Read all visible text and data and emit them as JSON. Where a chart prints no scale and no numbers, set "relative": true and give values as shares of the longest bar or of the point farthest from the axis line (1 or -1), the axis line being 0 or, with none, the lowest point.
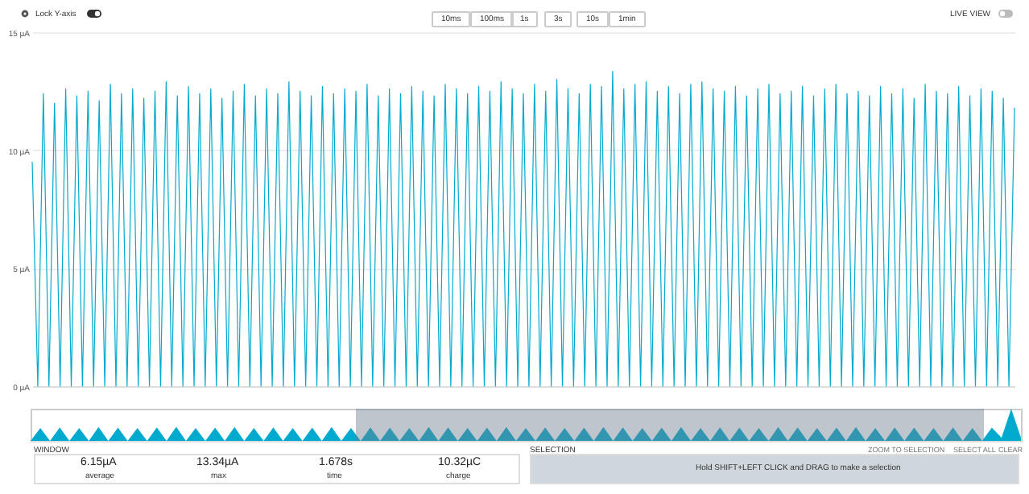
{
  "chart_data": [
    {
      "type": "line",
      "categories": [
        null,
        null,
        null,
        null,
        null,
        null,
        null,
        null,
        null,
        null,
        null,
        null,
        null,
        null,
        null,
        null,
        null,
        null,
        null,
        null,
        null,
        null,
        null,
        null,
        null,
        null,
        null,
        null,
        null,
        null,
        null,
        null,
        null,
        null,
        null,
        null,
        null,
        null,
        null,
        null,
        null,
        null,
        null,
        null,
        null,
        null,
        null,
        null,
        null,
        null,
        null,
        null,
        null,
        null,
        null,
        null,
        null,
        null,
        null,
        null,
        null,
        null,
        null,
        null,
        null,
        null,
        null,
        null,
        null,
        null,
        null,
        null,
        null,
        null,
        null,
        null,
        null,
        null,
        null,
        null,
        null,
        null,
        null,
        null,
        null,
        null,
        null,
        null,
        null,
        null,
        null,
        null,
        null,
        null,
        null,
        null,
        null,
        null,
        null,
        null,
        null,
        null,
        null,
        null,
        null,
        null,
        null,
        null,
        null,
        null,
        null,
        null,
        null,
        null,
        null,
        null,
        null,
        null,
        null,
        null,
        null,
        null,
        null,
        null,
        null,
        null,
        null,
        null,
        null,
        null,
        null,
        null,
        null,
        null,
        null,
        null,
        null,
        null,
        null,
        null,
        null,
        null,
        null,
        null,
        null,
        null,
        null,
        null,
        null,
        null,
        null,
        null,
        null,
        null,
        null,
        null,
        null,
        null,
        null,
        null,
        null,
        null,
        null,
        null,
        null,
        null,
        null,
        null,
        null,
        null,
        null,
        null,
        null,
        null,
        null,
        null,
        null
      ],
      "values": [
        9.5,
        0,
        12.4,
        0,
        12.0,
        0,
        12.6,
        0,
        12.3,
        0,
        12.5,
        0,
        12.1,
        0,
        12.8,
        0,
        12.4,
        0,
        12.6,
        0,
        12.2,
        0,
        12.5,
        0,
        12.9,
        0,
        12.3,
        0,
        12.7,
        0,
        12.4,
        0,
        12.6,
        0,
        12.2,
        0,
        12.5,
        0,
        12.8,
        0,
        12.3,
        0,
        12.6,
        0,
        12.4,
        0,
        12.9,
        0,
        12.5,
        0,
        12.3,
        0,
        12.7,
        0,
        12.4,
        0,
        12.6,
        0,
        12.5,
        0,
        12.8,
        0,
        12.3,
        0,
        12.6,
        0,
        12.4,
        0,
        12.7,
        0,
        12.5,
        0,
        12.3,
        0,
        12.8,
        0,
        12.6,
        0,
        12.4,
        0,
        12.7,
        0,
        12.5,
        0,
        12.9,
        0,
        12.6,
        0,
        12.4,
        0,
        12.8,
        0,
        12.5,
        0,
        13.0,
        0,
        12.6,
        0,
        12.4,
        0,
        12.8,
        0,
        12.7,
        0,
        13.34,
        0,
        12.6,
        0,
        12.8,
        0,
        12.9,
        0,
        12.5,
        0,
        12.7,
        0,
        12.4,
        0,
        12.8,
        0,
        12.9,
        0,
        12.6,
        0,
        12.5,
        0,
        12.7,
        0,
        12.3,
        0,
        12.6,
        0,
        12.8,
        0,
        12.4,
        0,
        12.5,
        0,
        12.7,
        0,
        12.3,
        0,
        12.6,
        0,
        12.8,
        0,
        12.4,
        0,
        12.5,
        0,
        12.3,
        0,
        12.7,
        0,
        12.4,
        0,
        12.6,
        0,
        12.2,
        0,
        12.8,
        0,
        12.5,
        0,
        12.4,
        0,
        12.7,
        0,
        12.3,
        0,
        12.6,
        0,
        12.5,
        0,
        12.2,
        0,
        11.8
      ],
      "color": "#00a9ce",
      "ylim": [
        0,
        15
      ],
      "yticks": [
        {
          "value": 0,
          "label": "0 µA"
        },
        {
          "value": 5,
          "label": "5 µA"
        },
        {
          "value": 10,
          "label": "10 µA"
        },
        {
          "value": 15,
          "label": "15 µA"
        }
      ],
      "grid": "y",
      "tick_labels": "y",
      "annotations": [
        "Lock Y-axis",
        "10ms",
        "100ms",
        "1s",
        "3s",
        "10s",
        "1min",
        "LIVE VIEW",
        "WINDOW",
        "6.15µA",
        "average",
        "13.34µA",
        "max",
        "1.678s",
        "time",
        "10.32µC",
        "charge",
        "SELECTION",
        "ZOOM TO SELECTION",
        "SELECT ALL",
        "CLEAR",
        "Hold SHIFT+LEFT CLICK and DRAG to make a selection"
      ]
    },
    {
      "type": "area",
      "relative": true,
      "color": "#00a9ce",
      "tick_labels": false,
      "categories": [
        null,
        null,
        null,
        null,
        null,
        null,
        null,
        null,
        null,
        null,
        null,
        null,
        null,
        null,
        null,
        null,
        null,
        null,
        null,
        null,
        null,
        null,
        null,
        null,
        null,
        null,
        null,
        null,
        null,
        null,
        null,
        null,
        null,
        null,
        null,
        null,
        null,
        null,
        null,
        null,
        null,
        null,
        null,
        null,
        null,
        null,
        null,
        null,
        null,
        null,
        null,
        null,
        null,
        null,
        null,
        null,
        null,
        null,
        null,
        null,
        null,
        null,
        null,
        null,
        null,
        null,
        null,
        null,
        null,
        null,
        null,
        null,
        null,
        null,
        null,
        null,
        null,
        null,
        null,
        null,
        null,
        null,
        null,
        null,
        null,
        null,
        null,
        null,
        null,
        null,
        null,
        null,
        null,
        null,
        null,
        null,
        null,
        null,
        null,
        null,
        null,
        null,
        null
      ],
      "values": [
        0,
        0.4,
        0,
        0.42,
        0,
        0.4,
        0,
        0.43,
        0,
        0.41,
        0,
        0.4,
        0,
        0.42,
        0,
        0.44,
        0,
        0.4,
        0,
        0.41,
        0,
        0.43,
        0,
        0.4,
        0,
        0.42,
        0,
        0.4,
        0,
        0.41,
        0,
        0.43,
        0,
        0.4,
        0,
        0.42,
        0,
        0.41,
        0,
        0.4,
        0,
        0.43,
        0,
        0.42,
        0,
        0.4,
        0,
        0.41,
        0,
        0.43,
        0,
        0.4,
        0,
        0.42,
        0,
        0.4,
        0,
        0.41,
        0,
        0.43,
        0,
        0.42,
        0,
        0.4,
        0,
        0.41,
        0,
        0.43,
        0,
        0.4,
        0,
        0.42,
        0,
        0.41,
        0,
        0.4,
        0,
        0.43,
        0,
        0.42,
        0,
        0.4,
        0,
        0.41,
        0,
        0.43,
        0,
        0.4,
        0,
        0.42,
        0,
        0.41,
        0,
        0.4,
        0,
        0.42,
        0,
        0.4,
        0,
        0.41,
        0.1,
        1,
        0.1
      ]
    }
  ]
}
